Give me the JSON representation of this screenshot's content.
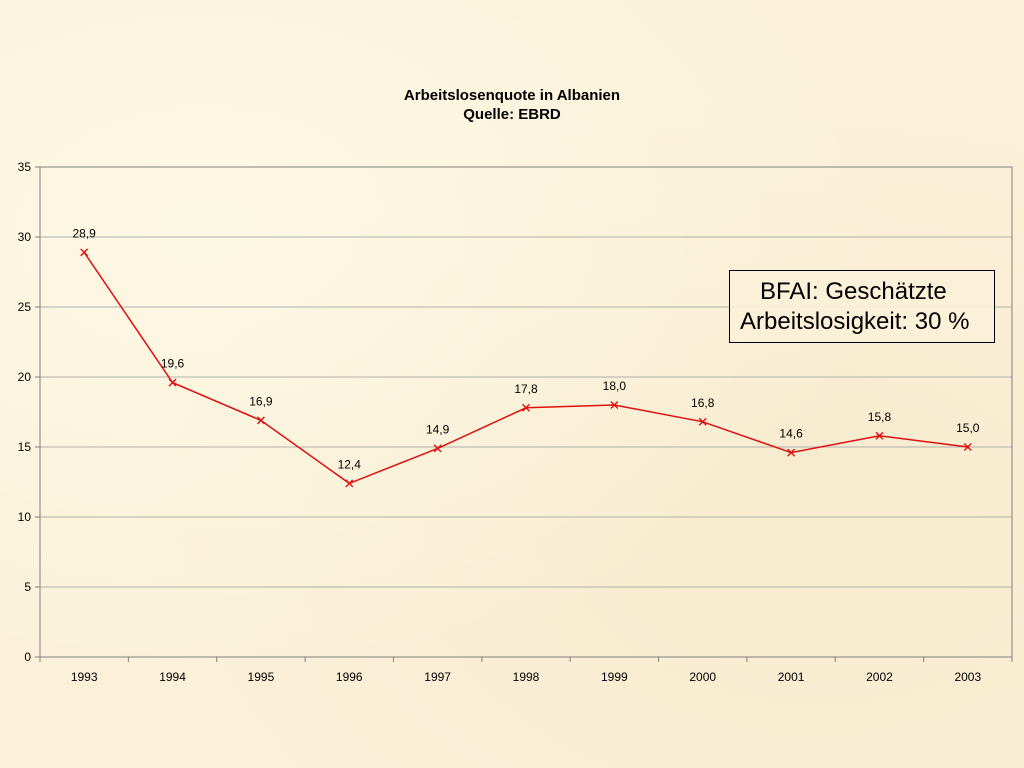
{
  "chart_data": {
    "type": "line",
    "title": "Arbeitslosenquote in Albanien",
    "subtitle": "Quelle: EBRD",
    "xlabel": "",
    "ylabel": "",
    "categories": [
      "1993",
      "1994",
      "1995",
      "1996",
      "1997",
      "1998",
      "1999",
      "2000",
      "2001",
      "2002",
      "2003"
    ],
    "series": [
      {
        "values": [
          28.9,
          19.6,
          16.9,
          12.4,
          14.9,
          17.8,
          18.0,
          16.8,
          14.6,
          15.8,
          15.0
        ],
        "data_labels": [
          "28,9",
          "19,6",
          "16,9",
          "12,4",
          "14,9",
          "17,8",
          "18,0",
          "16,8",
          "14,6",
          "15,8",
          "15,0"
        ],
        "color": "#e01010",
        "marker": "x"
      }
    ],
    "ylim": [
      0,
      35
    ],
    "yticks": [
      "0",
      "5",
      "10",
      "15",
      "20",
      "25",
      "30",
      "35"
    ],
    "grid": true,
    "legend": "none",
    "annotation": {
      "line1": "BFAI: Geschätzte",
      "line2": "Arbeitslosigkeit: 30 %"
    }
  },
  "colors": {
    "background": "#fbf1d9",
    "line": "#e01010",
    "grid": "#b0b0b0",
    "axis": "#808080"
  }
}
